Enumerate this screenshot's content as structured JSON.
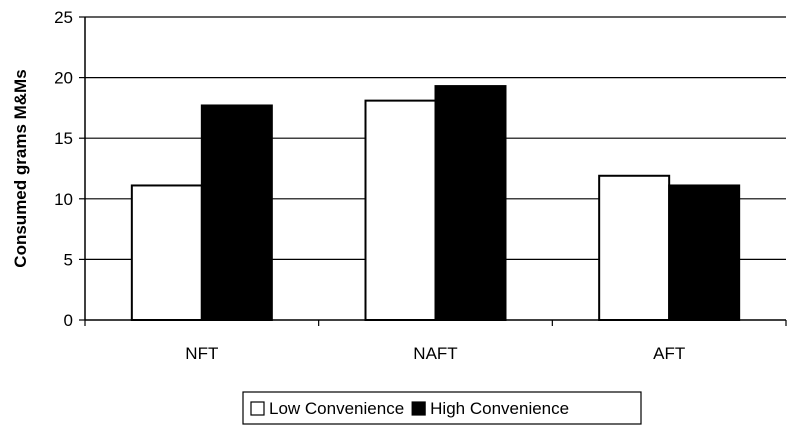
{
  "chart_data": {
    "type": "bar",
    "categories": [
      "NFT",
      "NAFT",
      "AFT"
    ],
    "series": [
      {
        "name": "Low Convenience",
        "values": [
          11.1,
          18.1,
          11.9
        ],
        "color": "#ffffff"
      },
      {
        "name": "High Convenience",
        "values": [
          17.7,
          19.3,
          11.1
        ],
        "color": "#000000"
      }
    ],
    "ylabel": "Consumed grams M&Ms",
    "xlabel": "",
    "ylim": [
      0,
      25
    ],
    "yticks": [
      0,
      5,
      10,
      15,
      20,
      25
    ],
    "grid": true,
    "legend_position": "bottom"
  }
}
